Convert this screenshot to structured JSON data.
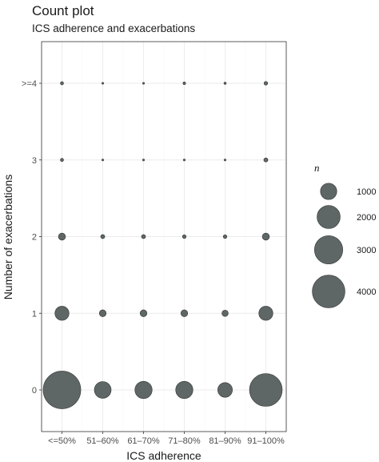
{
  "chart_data": {
    "type": "scatter",
    "title": "Count plot",
    "subtitle": "ICS adherence and exacerbations",
    "xlabel": "ICS adherence",
    "ylabel": "Number of exacerbations",
    "x_categories": [
      "<=50%",
      "51–60%",
      "61–70%",
      "71–80%",
      "81–90%",
      "91–100%"
    ],
    "y_categories": [
      "0",
      "1",
      "2",
      "3",
      ">=4"
    ],
    "points": [
      {
        "x": "<=50%",
        "y": "0",
        "n": 4300
      },
      {
        "x": "51–60%",
        "y": "0",
        "n": 850
      },
      {
        "x": "61–70%",
        "y": "0",
        "n": 900
      },
      {
        "x": "71–80%",
        "y": "0",
        "n": 900
      },
      {
        "x": "81–90%",
        "y": "0",
        "n": 650
      },
      {
        "x": "91–100%",
        "y": "0",
        "n": 3250
      },
      {
        "x": "<=50%",
        "y": "1",
        "n": 600
      },
      {
        "x": "51–60%",
        "y": "1",
        "n": 140
      },
      {
        "x": "61–70%",
        "y": "1",
        "n": 140
      },
      {
        "x": "71–80%",
        "y": "1",
        "n": 140
      },
      {
        "x": "81–90%",
        "y": "1",
        "n": 120
      },
      {
        "x": "91–100%",
        "y": "1",
        "n": 600
      },
      {
        "x": "<=50%",
        "y": "2",
        "n": 150
      },
      {
        "x": "51–60%",
        "y": "2",
        "n": 50
      },
      {
        "x": "61–70%",
        "y": "2",
        "n": 50
      },
      {
        "x": "71–80%",
        "y": "2",
        "n": 40
      },
      {
        "x": "81–90%",
        "y": "2",
        "n": 40
      },
      {
        "x": "91–100%",
        "y": "2",
        "n": 150
      },
      {
        "x": "<=50%",
        "y": "3",
        "n": 30
      },
      {
        "x": "51–60%",
        "y": "3",
        "n": 10
      },
      {
        "x": "61–70%",
        "y": "3",
        "n": 10
      },
      {
        "x": "71–80%",
        "y": "3",
        "n": 10
      },
      {
        "x": "81–90%",
        "y": "3",
        "n": 5
      },
      {
        "x": "91–100%",
        "y": "3",
        "n": 50
      },
      {
        "x": "<=50%",
        "y": ">=4",
        "n": 30
      },
      {
        "x": "51–60%",
        "y": ">=4",
        "n": 5
      },
      {
        "x": "61–70%",
        "y": ">=4",
        "n": 5
      },
      {
        "x": "71–80%",
        "y": ">=4",
        "n": 20
      },
      {
        "x": "81–90%",
        "y": ">=4",
        "n": 15
      },
      {
        "x": "91–100%",
        "y": ">=4",
        "n": 40
      }
    ],
    "size_legend": {
      "title": "n",
      "entries": [
        {
          "value": 1000,
          "label": "1000"
        },
        {
          "value": 2000,
          "label": "2000"
        },
        {
          "value": 3000,
          "label": "3000"
        },
        {
          "value": 4000,
          "label": "4000"
        }
      ],
      "placement": "right"
    },
    "grid": true,
    "colors": {
      "point_fill": "#5f6766",
      "point_stroke": "#3b3f3f",
      "background": "#ffffff",
      "gridline": "#ebebeb"
    }
  }
}
